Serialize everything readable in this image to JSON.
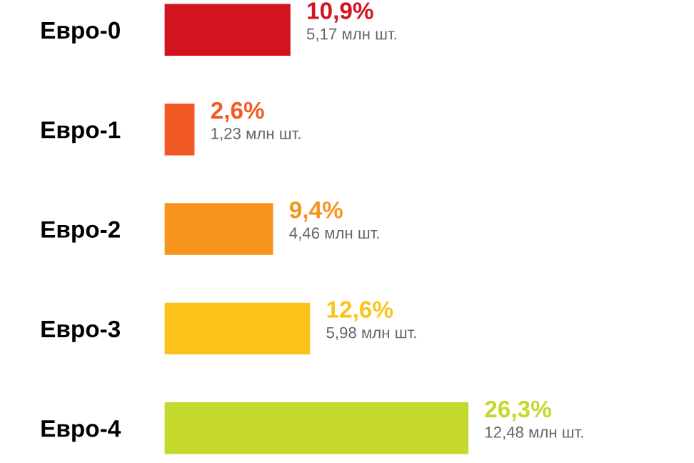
{
  "chart_data": {
    "type": "bar",
    "orientation": "horizontal",
    "categories": [
      "Евро-0",
      "Евро-1",
      "Евро-2",
      "Евро-3",
      "Евро-4"
    ],
    "values": [
      10.9,
      2.6,
      9.4,
      12.6,
      26.3
    ],
    "colors": [
      "#d3141f",
      "#f15a22",
      "#f7941d",
      "#fbc31a",
      "#c4d82d"
    ],
    "value_labels": [
      "10,9%",
      "2,6%",
      "9,4%",
      "12,6%",
      "26,3%"
    ],
    "annotations": [
      "5,17 млн шт.",
      "1,23 млн шт.",
      "4,46 млн шт.",
      "5,98 млн шт.",
      "12,48 млн шт."
    ],
    "grid": false,
    "legend": false
  }
}
